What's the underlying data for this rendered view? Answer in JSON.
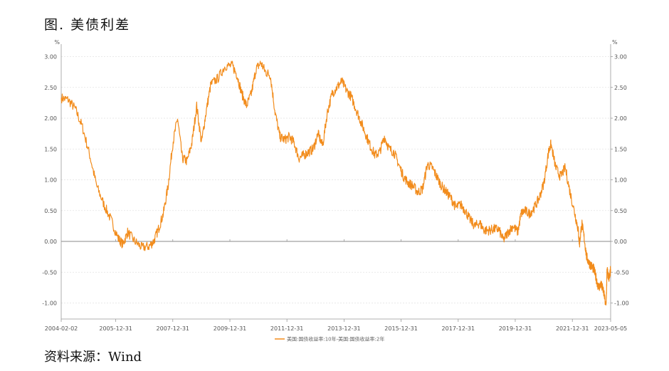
{
  "title": "图. 美债利差",
  "source": "资料来源：Wind",
  "chart_data": {
    "type": "line",
    "title": "",
    "xlabel": "",
    "ylabel": "",
    "unit_left": "%",
    "unit_right": "%",
    "ylim": [
      -1.2,
      3.2
    ],
    "yticks": [
      "3.00",
      "2.50",
      "2.00",
      "1.50",
      "1.00",
      "0.50",
      "0.00",
      "-0.50",
      "-1.00"
    ],
    "xlim": [
      "2004-02-02",
      "2023-05-05"
    ],
    "xticks": [
      "2004-02-02",
      "2005-12-31",
      "2007-12-31",
      "2009-12-31",
      "2011-12-31",
      "2013-12-31",
      "2015-12-31",
      "2017-12-31",
      "2019-12-31",
      "2021-12-31",
      "2023-05-05"
    ],
    "legend_position": "bottom-center",
    "grid": true,
    "series": [
      {
        "name": "美国:国债收益率:10年-美国:国债收益率:2年",
        "color": "#F28C1C",
        "points": [
          [
            "2004-02-02",
            2.33
          ],
          [
            "2004-05-01",
            2.3
          ],
          [
            "2004-08-01",
            2.15
          ],
          [
            "2004-11-01",
            1.85
          ],
          [
            "2005-02-01",
            1.4
          ],
          [
            "2005-05-01",
            0.9
          ],
          [
            "2005-08-01",
            0.6
          ],
          [
            "2005-11-01",
            0.35
          ],
          [
            "2006-02-01",
            0.05
          ],
          [
            "2006-04-01",
            -0.05
          ],
          [
            "2006-06-01",
            0.15
          ],
          [
            "2006-09-01",
            0.0
          ],
          [
            "2006-12-01",
            -0.1
          ],
          [
            "2007-03-01",
            -0.08
          ],
          [
            "2007-05-01",
            0.0
          ],
          [
            "2007-07-01",
            0.2
          ],
          [
            "2007-09-01",
            0.45
          ],
          [
            "2007-11-01",
            0.9
          ],
          [
            "2008-01-01",
            1.6
          ],
          [
            "2008-03-01",
            2.0
          ],
          [
            "2008-05-01",
            1.35
          ],
          [
            "2008-07-01",
            1.3
          ],
          [
            "2008-09-01",
            1.6
          ],
          [
            "2008-11-01",
            2.2
          ],
          [
            "2009-01-01",
            1.6
          ],
          [
            "2009-03-01",
            2.1
          ],
          [
            "2009-05-01",
            2.55
          ],
          [
            "2009-08-01",
            2.65
          ],
          [
            "2009-11-01",
            2.85
          ],
          [
            "2010-02-01",
            2.85
          ],
          [
            "2010-04-01",
            2.7
          ],
          [
            "2010-06-01",
            2.4
          ],
          [
            "2010-08-01",
            2.2
          ],
          [
            "2010-10-01",
            2.4
          ],
          [
            "2010-12-01",
            2.8
          ],
          [
            "2011-02-01",
            2.9
          ],
          [
            "2011-04-01",
            2.75
          ],
          [
            "2011-06-01",
            2.7
          ],
          [
            "2011-08-01",
            2.1
          ],
          [
            "2011-10-01",
            1.7
          ],
          [
            "2011-12-01",
            1.65
          ],
          [
            "2012-02-01",
            1.7
          ],
          [
            "2012-04-01",
            1.6
          ],
          [
            "2012-06-01",
            1.35
          ],
          [
            "2012-08-01",
            1.4
          ],
          [
            "2012-10-01",
            1.45
          ],
          [
            "2012-12-01",
            1.5
          ],
          [
            "2013-02-01",
            1.75
          ],
          [
            "2013-04-01",
            1.55
          ],
          [
            "2013-06-01",
            2.1
          ],
          [
            "2013-08-01",
            2.4
          ],
          [
            "2013-10-01",
            2.5
          ],
          [
            "2013-12-01",
            2.6
          ],
          [
            "2014-02-01",
            2.45
          ],
          [
            "2014-04-01",
            2.35
          ],
          [
            "2014-06-01",
            2.15
          ],
          [
            "2014-08-01",
            1.95
          ],
          [
            "2014-10-01",
            1.75
          ],
          [
            "2014-12-01",
            1.55
          ],
          [
            "2015-02-01",
            1.4
          ],
          [
            "2015-04-01",
            1.45
          ],
          [
            "2015-06-01",
            1.7
          ],
          [
            "2015-08-01",
            1.5
          ],
          [
            "2015-10-01",
            1.45
          ],
          [
            "2015-12-01",
            1.25
          ],
          [
            "2016-02-01",
            1.05
          ],
          [
            "2016-04-01",
            0.95
          ],
          [
            "2016-06-01",
            0.9
          ],
          [
            "2016-08-01",
            0.8
          ],
          [
            "2016-10-01",
            0.85
          ],
          [
            "2016-12-01",
            1.25
          ],
          [
            "2017-02-01",
            1.2
          ],
          [
            "2017-04-01",
            1.05
          ],
          [
            "2017-06-01",
            0.9
          ],
          [
            "2017-08-01",
            0.8
          ],
          [
            "2017-10-01",
            0.7
          ],
          [
            "2017-12-01",
            0.55
          ],
          [
            "2018-02-01",
            0.6
          ],
          [
            "2018-04-01",
            0.5
          ],
          [
            "2018-06-01",
            0.35
          ],
          [
            "2018-08-01",
            0.25
          ],
          [
            "2018-10-01",
            0.3
          ],
          [
            "2018-12-01",
            0.18
          ],
          [
            "2019-02-01",
            0.18
          ],
          [
            "2019-04-01",
            0.2
          ],
          [
            "2019-06-01",
            0.2
          ],
          [
            "2019-08-01",
            0.02
          ],
          [
            "2019-10-01",
            0.15
          ],
          [
            "2019-12-01",
            0.25
          ],
          [
            "2020-02-01",
            0.15
          ],
          [
            "2020-03-15",
            0.45
          ],
          [
            "2020-05-01",
            0.5
          ],
          [
            "2020-07-01",
            0.45
          ],
          [
            "2020-09-01",
            0.55
          ],
          [
            "2020-11-01",
            0.7
          ],
          [
            "2021-01-01",
            0.95
          ],
          [
            "2021-03-01",
            1.45
          ],
          [
            "2021-04-01",
            1.58
          ],
          [
            "2021-06-01",
            1.2
          ],
          [
            "2021-08-01",
            1.05
          ],
          [
            "2021-10-01",
            1.2
          ],
          [
            "2021-12-01",
            0.8
          ],
          [
            "2022-02-01",
            0.45
          ],
          [
            "2022-03-15",
            0.2
          ],
          [
            "2022-04-01",
            -0.05
          ],
          [
            "2022-05-01",
            0.3
          ],
          [
            "2022-06-01",
            0.05
          ],
          [
            "2022-07-01",
            -0.25
          ],
          [
            "2022-08-01",
            -0.35
          ],
          [
            "2022-09-01",
            -0.4
          ],
          [
            "2022-10-01",
            -0.45
          ],
          [
            "2022-11-01",
            -0.6
          ],
          [
            "2022-12-01",
            -0.75
          ],
          [
            "2023-01-01",
            -0.7
          ],
          [
            "2023-02-01",
            -0.8
          ],
          [
            "2023-03-08",
            -1.07
          ],
          [
            "2023-03-20",
            -0.45
          ],
          [
            "2023-04-01",
            -0.55
          ],
          [
            "2023-04-20",
            -0.6
          ],
          [
            "2023-05-05",
            -0.45
          ]
        ]
      }
    ]
  }
}
